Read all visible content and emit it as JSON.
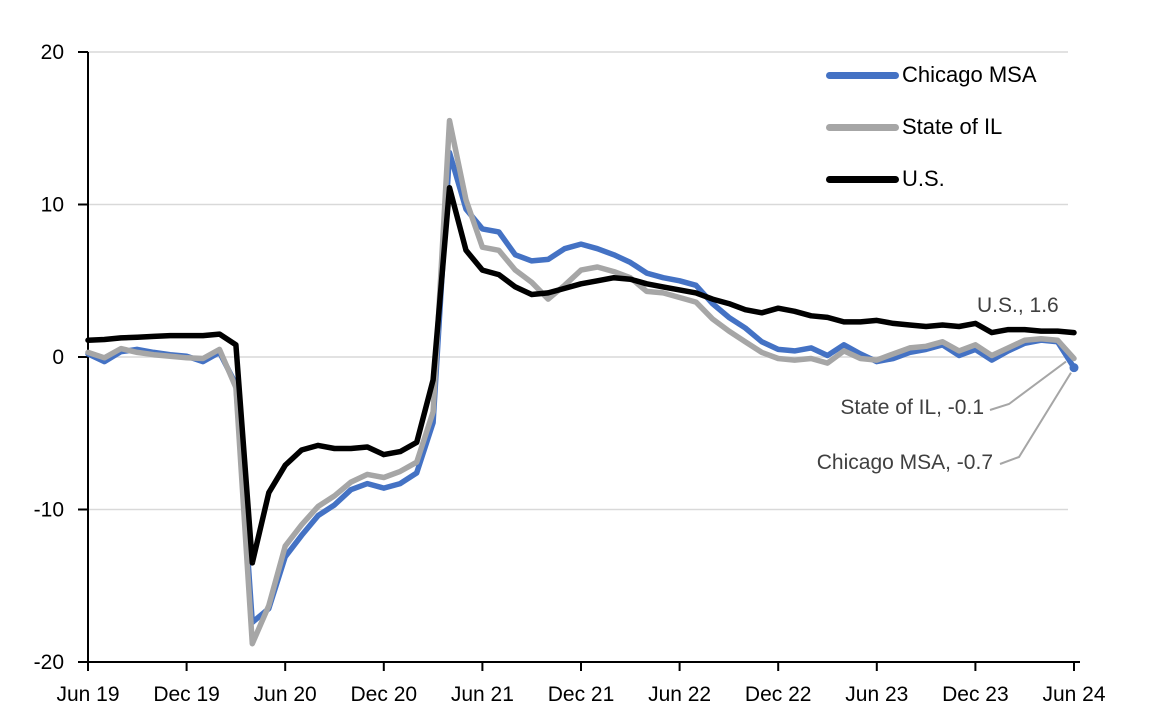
{
  "chart_data": {
    "type": "line",
    "title": "",
    "xlabel": "",
    "ylabel": "",
    "ylim": [
      -20,
      20
    ],
    "y_ticks": [
      20,
      10,
      0,
      -10,
      -20
    ],
    "grid": "horizontal",
    "legend_position": "top-right-inside",
    "x": [
      "Jun 19",
      "Jul 19",
      "Aug 19",
      "Sep 19",
      "Oct 19",
      "Nov 19",
      "Dec 19",
      "Jan 20",
      "Feb 20",
      "Mar 20",
      "Apr 20",
      "May 20",
      "Jun 20",
      "Jul 20",
      "Aug 20",
      "Sep 20",
      "Oct 20",
      "Nov 20",
      "Dec 20",
      "Jan 21",
      "Feb 21",
      "Mar 21",
      "Apr 21",
      "May 21",
      "Jun 21",
      "Jul 21",
      "Aug 21",
      "Sep 21",
      "Oct 21",
      "Nov 21",
      "Dec 21",
      "Jan 22",
      "Feb 22",
      "Mar 22",
      "Apr 22",
      "May 22",
      "Jun 22",
      "Jul 22",
      "Aug 22",
      "Sep 22",
      "Oct 22",
      "Nov 22",
      "Dec 22",
      "Jan 23",
      "Feb 23",
      "Mar 23",
      "Apr 23",
      "May 23",
      "Jun 23",
      "Jul 23",
      "Aug 23",
      "Sep 23",
      "Oct 23",
      "Nov 23",
      "Dec 23",
      "Jan 24",
      "Feb 24",
      "Mar 24",
      "Apr 24",
      "May 24",
      "Jun 24"
    ],
    "x_tick_indices": [
      0,
      6,
      12,
      18,
      24,
      30,
      36,
      42,
      48,
      54,
      60
    ],
    "x_tick_labels": [
      "Jun 19",
      "Dec 19",
      "Jun 20",
      "Dec 20",
      "Jun 21",
      "Dec 21",
      "Jun 22",
      "Dec 22",
      "Jun 23",
      "Dec 23",
      "Jun 24"
    ],
    "series": [
      {
        "name": "Chicago MSA",
        "color": "#4472C4",
        "values": [
          0.2,
          -0.3,
          0.35,
          0.5,
          0.3,
          0.15,
          0.05,
          -0.3,
          0.3,
          -1.8,
          -17.4,
          -16.5,
          -13.1,
          -11.7,
          -10.4,
          -9.7,
          -8.7,
          -8.3,
          -8.6,
          -8.3,
          -7.6,
          -4.3,
          13.4,
          9.7,
          8.4,
          8.2,
          6.7,
          6.3,
          6.4,
          7.1,
          7.4,
          7.1,
          6.7,
          6.2,
          5.5,
          5.2,
          5.0,
          4.7,
          3.5,
          2.6,
          1.9,
          1.0,
          0.5,
          0.4,
          0.6,
          0.1,
          0.8,
          0.2,
          -0.3,
          -0.1,
          0.3,
          0.5,
          0.8,
          0.1,
          0.5,
          -0.2,
          0.4,
          0.9,
          1.1,
          1.0,
          -0.7
        ]
      },
      {
        "name": "State of IL",
        "color": "#A6A6A6",
        "values": [
          0.3,
          -0.05,
          0.55,
          0.3,
          0.15,
          0.05,
          -0.05,
          -0.1,
          0.5,
          -2.0,
          -18.8,
          -16.3,
          -12.4,
          -11.0,
          -9.8,
          -9.1,
          -8.2,
          -7.7,
          -7.9,
          -7.5,
          -6.9,
          -3.6,
          15.5,
          10.3,
          7.2,
          7.0,
          5.7,
          4.9,
          3.8,
          4.7,
          5.7,
          5.9,
          5.6,
          5.2,
          4.3,
          4.2,
          3.9,
          3.6,
          2.5,
          1.7,
          1.0,
          0.3,
          -0.1,
          -0.2,
          -0.1,
          -0.4,
          0.4,
          -0.1,
          -0.2,
          0.2,
          0.6,
          0.7,
          1.0,
          0.4,
          0.8,
          0.1,
          0.6,
          1.1,
          1.2,
          1.1,
          -0.1
        ]
      },
      {
        "name": "U.S.",
        "color": "#000000",
        "values": [
          1.1,
          1.15,
          1.25,
          1.3,
          1.35,
          1.4,
          1.4,
          1.4,
          1.5,
          0.8,
          -13.5,
          -8.9,
          -7.1,
          -6.1,
          -5.8,
          -6.0,
          -6.0,
          -5.9,
          -6.4,
          -6.2,
          -5.6,
          -1.5,
          11.1,
          7.0,
          5.7,
          5.4,
          4.6,
          4.1,
          4.2,
          4.5,
          4.8,
          5.0,
          5.2,
          5.1,
          4.8,
          4.6,
          4.4,
          4.2,
          3.8,
          3.5,
          3.1,
          2.9,
          3.2,
          3.0,
          2.7,
          2.6,
          2.3,
          2.3,
          2.4,
          2.2,
          2.1,
          2.0,
          2.1,
          2.0,
          2.2,
          1.6,
          1.8,
          1.8,
          1.7,
          1.7,
          1.6
        ]
      }
    ],
    "annotations": [
      {
        "text": "U.S., 1.6",
        "series": "U.S.",
        "value": 1.6
      },
      {
        "text": "State of IL, -0.1",
        "series": "State of IL",
        "value": -0.1
      },
      {
        "text": "Chicago MSA, -0.7",
        "series": "Chicago MSA",
        "value": -0.7
      }
    ]
  },
  "colors": {
    "gridline": "#D9D9D9",
    "axis": "#000000",
    "tick_label": "#000000",
    "annotation_text": "#404040",
    "leader_line": "#A6A6A6",
    "background": "#FFFFFF"
  }
}
